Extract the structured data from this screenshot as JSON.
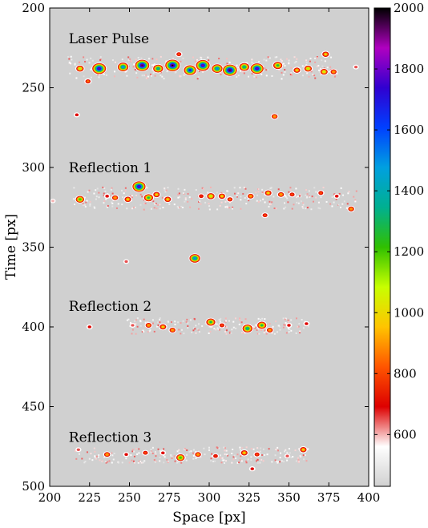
{
  "chart_data": {
    "type": "heatmap",
    "xlabel": "Space [px]",
    "ylabel": "Time [px]",
    "xlim": [
      200,
      400
    ],
    "ylim": [
      500,
      200
    ],
    "y_inverted": true,
    "xticks": [
      200,
      225,
      250,
      275,
      300,
      325,
      350,
      375,
      400
    ],
    "yticks": [
      200,
      250,
      300,
      350,
      400,
      450,
      500
    ],
    "background_value": 430,
    "colorbar": {
      "range": [
        430,
        2000
      ],
      "ticks": [
        600,
        800,
        1000,
        1200,
        1400,
        1600,
        1800,
        2000
      ],
      "colormap": "rainbow (grey-white-red-yellow-green-cyan-blue-purple-black)",
      "colors": [
        "#d0d0d0",
        "#ffffff",
        "#dd0000",
        "#ff5500",
        "#ffc400",
        "#c8ff00",
        "#30c000",
        "#00b090",
        "#00a0e0",
        "#0040ff",
        "#3000d0",
        "#b000c0",
        "#000000"
      ]
    },
    "annotations": [
      {
        "text": "Laser Pulse",
        "x": 222,
        "y": 222
      },
      {
        "text": "Reflection 1",
        "x": 222,
        "y": 303
      },
      {
        "text": "Reflection 2",
        "x": 222,
        "y": 390
      },
      {
        "text": "Reflection 3",
        "x": 222,
        "y": 472
      }
    ],
    "bands": [
      {
        "name": "Laser Pulse",
        "y_center": 238,
        "x_range": [
          211,
          380
        ],
        "y_range": [
          230,
          244
        ],
        "peak": 2000
      },
      {
        "name": "Reflection 1",
        "y_center": 319,
        "x_range": [
          214,
          392
        ],
        "y_range": [
          312,
          326
        ],
        "peak": 1900
      },
      {
        "name": "Reflection 2",
        "y_center": 399,
        "x_range": [
          248,
          362
        ],
        "y_range": [
          394,
          404
        ],
        "peak": 1800
      },
      {
        "name": "Reflection 3",
        "y_center": 480,
        "x_range": [
          215,
          362
        ],
        "y_range": [
          475,
          485
        ],
        "peak": 1200
      }
    ],
    "hotspots": [
      {
        "x": 231,
        "y": 238,
        "v": 1900
      },
      {
        "x": 246,
        "y": 237,
        "v": 1500
      },
      {
        "x": 258,
        "y": 236,
        "v": 1950
      },
      {
        "x": 268,
        "y": 238,
        "v": 1400
      },
      {
        "x": 277,
        "y": 236,
        "v": 2000
      },
      {
        "x": 288,
        "y": 239,
        "v": 1700
      },
      {
        "x": 296,
        "y": 236,
        "v": 1900
      },
      {
        "x": 305,
        "y": 238,
        "v": 1500
      },
      {
        "x": 313,
        "y": 239,
        "v": 1950
      },
      {
        "x": 322,
        "y": 237,
        "v": 1400
      },
      {
        "x": 330,
        "y": 238,
        "v": 1800
      },
      {
        "x": 343,
        "y": 236,
        "v": 1300
      },
      {
        "x": 219,
        "y": 238,
        "v": 1100
      },
      {
        "x": 355,
        "y": 239,
        "v": 1000
      },
      {
        "x": 362,
        "y": 238,
        "v": 1100
      },
      {
        "x": 372,
        "y": 240,
        "v": 1050
      },
      {
        "x": 378,
        "y": 240,
        "v": 900
      },
      {
        "x": 373,
        "y": 229,
        "v": 1000
      },
      {
        "x": 224,
        "y": 246,
        "v": 850
      },
      {
        "x": 281,
        "y": 229,
        "v": 800
      },
      {
        "x": 217,
        "y": 267,
        "v": 700
      },
      {
        "x": 341,
        "y": 268,
        "v": 900
      },
      {
        "x": 392,
        "y": 237,
        "v": 650
      },
      {
        "x": 219,
        "y": 320,
        "v": 1200
      },
      {
        "x": 241,
        "y": 319,
        "v": 900
      },
      {
        "x": 249,
        "y": 320,
        "v": 1000
      },
      {
        "x": 256,
        "y": 312,
        "v": 1800
      },
      {
        "x": 262,
        "y": 319,
        "v": 1300
      },
      {
        "x": 267,
        "y": 317,
        "v": 1000
      },
      {
        "x": 274,
        "y": 320,
        "v": 1000
      },
      {
        "x": 301,
        "y": 318,
        "v": 1100
      },
      {
        "x": 308,
        "y": 318,
        "v": 1000
      },
      {
        "x": 313,
        "y": 320,
        "v": 850
      },
      {
        "x": 326,
        "y": 318,
        "v": 900
      },
      {
        "x": 337,
        "y": 316,
        "v": 1000
      },
      {
        "x": 345,
        "y": 317,
        "v": 900
      },
      {
        "x": 352,
        "y": 317,
        "v": 800
      },
      {
        "x": 370,
        "y": 316,
        "v": 800
      },
      {
        "x": 380,
        "y": 318,
        "v": 700
      },
      {
        "x": 389,
        "y": 326,
        "v": 900
      },
      {
        "x": 335,
        "y": 330,
        "v": 800
      },
      {
        "x": 295,
        "y": 318,
        "v": 750
      },
      {
        "x": 202,
        "y": 321,
        "v": 600
      },
      {
        "x": 236,
        "y": 318,
        "v": 700
      },
      {
        "x": 291,
        "y": 357,
        "v": 1500
      },
      {
        "x": 248,
        "y": 359,
        "v": 650
      },
      {
        "x": 225,
        "y": 400,
        "v": 700
      },
      {
        "x": 252,
        "y": 399,
        "v": 650
      },
      {
        "x": 262,
        "y": 399,
        "v": 900
      },
      {
        "x": 271,
        "y": 400,
        "v": 1000
      },
      {
        "x": 277,
        "y": 402,
        "v": 900
      },
      {
        "x": 301,
        "y": 397,
        "v": 1300
      },
      {
        "x": 308,
        "y": 399,
        "v": 800
      },
      {
        "x": 324,
        "y": 401,
        "v": 1400
      },
      {
        "x": 333,
        "y": 399,
        "v": 1300
      },
      {
        "x": 338,
        "y": 402,
        "v": 900
      },
      {
        "x": 350,
        "y": 399,
        "v": 700
      },
      {
        "x": 361,
        "y": 398,
        "v": 700
      },
      {
        "x": 236,
        "y": 480,
        "v": 900
      },
      {
        "x": 248,
        "y": 480,
        "v": 700
      },
      {
        "x": 260,
        "y": 479,
        "v": 800
      },
      {
        "x": 271,
        "y": 479,
        "v": 700
      },
      {
        "x": 282,
        "y": 482,
        "v": 1200
      },
      {
        "x": 293,
        "y": 480,
        "v": 900
      },
      {
        "x": 304,
        "y": 481,
        "v": 750
      },
      {
        "x": 322,
        "y": 479,
        "v": 1000
      },
      {
        "x": 330,
        "y": 480,
        "v": 800
      },
      {
        "x": 359,
        "y": 477,
        "v": 1000
      },
      {
        "x": 218,
        "y": 477,
        "v": 650
      },
      {
        "x": 327,
        "y": 489,
        "v": 700
      },
      {
        "x": 349,
        "y": 481,
        "v": 650
      }
    ]
  }
}
